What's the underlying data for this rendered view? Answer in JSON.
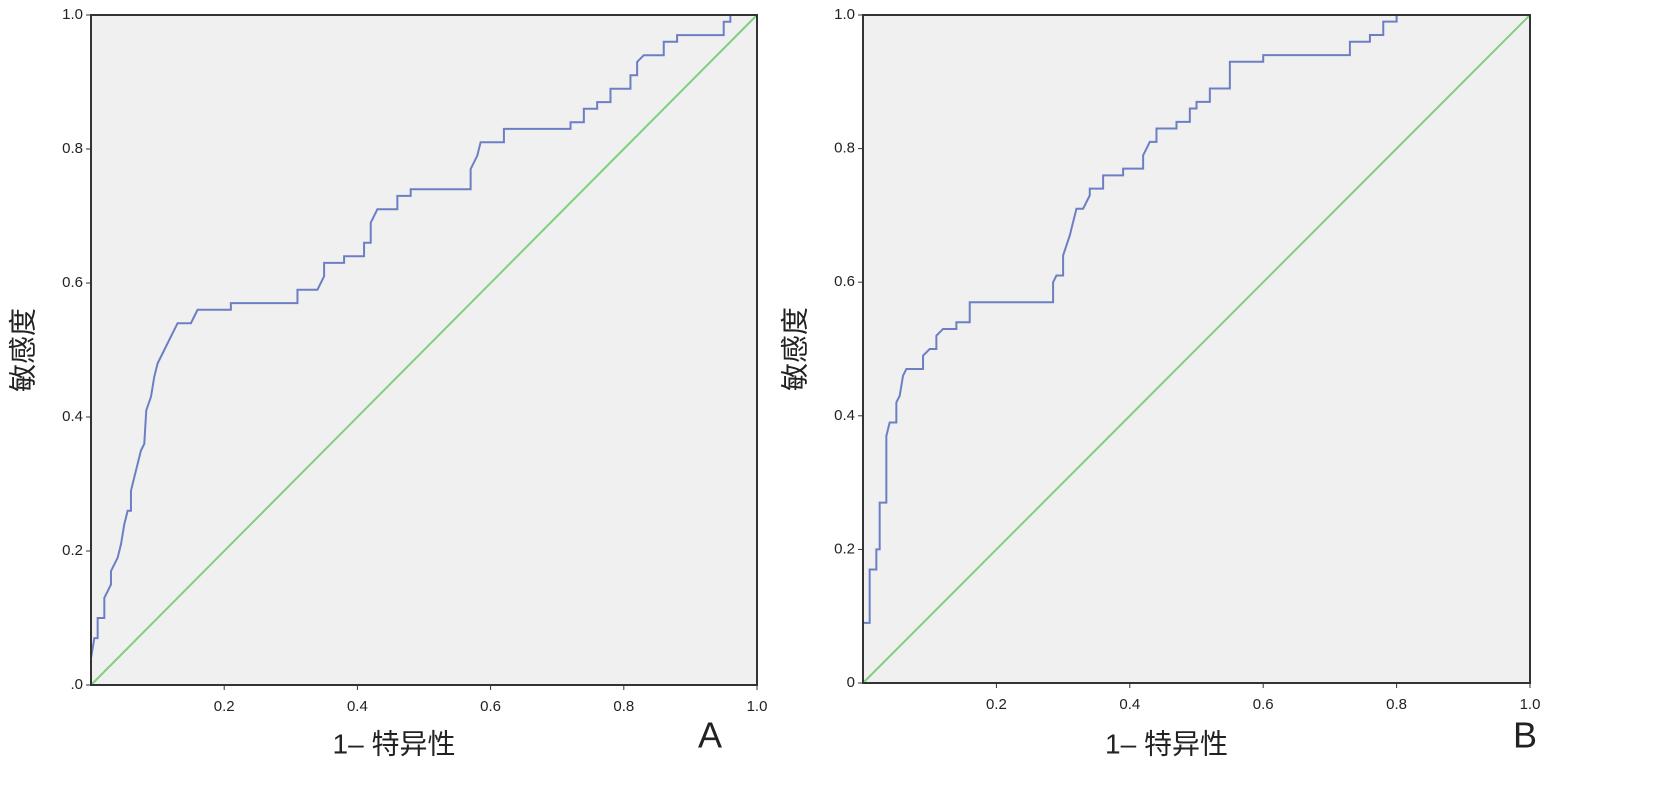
{
  "chart_data": [
    {
      "type": "line",
      "xlabel": "1– 特异性",
      "ylabel": "敏感度",
      "panel_label": "A",
      "xlim": [
        0,
        1
      ],
      "ylim": [
        0,
        1
      ],
      "xticks": [
        0.2,
        0.4,
        0.6,
        0.8,
        {
          "value": 1,
          "label": "1.0"
        }
      ],
      "yticks": [
        {
          "value": 0,
          "label": ".0"
        },
        0.2,
        0.4,
        0.6,
        0.8,
        {
          "value": 1,
          "label": "1.0"
        }
      ],
      "series": [
        {
          "color": "#6c7fc4",
          "x": [
            0,
            0,
            0.005,
            0.01,
            0.01,
            0.02,
            0.02,
            0.03,
            0.03,
            0.04,
            0.045,
            0.05,
            0.055,
            0.06,
            0.06,
            0.065,
            0.07,
            0.075,
            0.08,
            0.083,
            0.09,
            0.095,
            0.1,
            0.11,
            0.12,
            0.13,
            0.15,
            0.16,
            0.21,
            0.21,
            0.31,
            0.31,
            0.34,
            0.35,
            0.35,
            0.38,
            0.38,
            0.41,
            0.41,
            0.42,
            0.42,
            0.43,
            0.46,
            0.46,
            0.48,
            0.48,
            0.57,
            0.57,
            0.58,
            0.585,
            0.62,
            0.62,
            0.72,
            0.72,
            0.74,
            0.74,
            0.76,
            0.76,
            0.78,
            0.78,
            0.81,
            0.81,
            0.82,
            0.82,
            0.83,
            0.86,
            0.86,
            0.88,
            0.88,
            0.95,
            0.95,
            0.96,
            0.96,
            1
          ],
          "values": [
            0,
            0.04,
            0.07,
            0.07,
            0.1,
            0.1,
            0.13,
            0.15,
            0.17,
            0.19,
            0.21,
            0.24,
            0.26,
            0.26,
            0.29,
            0.31,
            0.33,
            0.35,
            0.36,
            0.41,
            0.43,
            0.46,
            0.48,
            0.5,
            0.52,
            0.54,
            0.54,
            0.56,
            0.56,
            0.57,
            0.57,
            0.59,
            0.59,
            0.61,
            0.63,
            0.63,
            0.64,
            0.64,
            0.66,
            0.66,
            0.69,
            0.71,
            0.71,
            0.73,
            0.73,
            0.74,
            0.74,
            0.77,
            0.79,
            0.81,
            0.81,
            0.83,
            0.83,
            0.84,
            0.84,
            0.86,
            0.86,
            0.87,
            0.87,
            0.89,
            0.89,
            0.91,
            0.91,
            0.93,
            0.94,
            0.94,
            0.96,
            0.96,
            0.97,
            0.97,
            0.99,
            0.99,
            1,
            1
          ]
        },
        {
          "color": "#7fcf7f",
          "x": [
            0,
            1
          ],
          "values": [
            0,
            1
          ]
        }
      ]
    },
    {
      "type": "line",
      "xlabel": "1– 特异性",
      "ylabel": "敏感度",
      "panel_label": "B",
      "xlim": [
        0,
        1
      ],
      "ylim": [
        0,
        1
      ],
      "xticks": [
        0.2,
        0.4,
        0.6,
        0.8,
        {
          "value": 1,
          "label": "1.0"
        }
      ],
      "yticks": [
        0,
        0.2,
        0.4,
        0.6,
        0.8,
        {
          "value": 1,
          "label": "1.0"
        }
      ],
      "series": [
        {
          "color": "#6c7fc4",
          "x": [
            0,
            0,
            0.01,
            0.01,
            0.02,
            0.02,
            0.025,
            0.025,
            0.035,
            0.035,
            0.04,
            0.05,
            0.05,
            0.055,
            0.06,
            0.065,
            0.09,
            0.09,
            0.1,
            0.11,
            0.11,
            0.12,
            0.14,
            0.14,
            0.16,
            0.16,
            0.285,
            0.285,
            0.29,
            0.3,
            0.3,
            0.31,
            0.315,
            0.32,
            0.33,
            0.34,
            0.34,
            0.36,
            0.36,
            0.39,
            0.39,
            0.42,
            0.42,
            0.43,
            0.44,
            0.44,
            0.47,
            0.47,
            0.49,
            0.49,
            0.5,
            0.5,
            0.52,
            0.52,
            0.55,
            0.55,
            0.6,
            0.6,
            0.73,
            0.73,
            0.76,
            0.76,
            0.78,
            0.78,
            0.8,
            0.8,
            1
          ],
          "values": [
            0,
            0.09,
            0.09,
            0.17,
            0.17,
            0.2,
            0.2,
            0.27,
            0.27,
            0.37,
            0.39,
            0.39,
            0.42,
            0.43,
            0.46,
            0.47,
            0.47,
            0.49,
            0.5,
            0.5,
            0.52,
            0.53,
            0.53,
            0.54,
            0.54,
            0.57,
            0.57,
            0.6,
            0.61,
            0.61,
            0.64,
            0.67,
            0.69,
            0.71,
            0.71,
            0.73,
            0.74,
            0.74,
            0.76,
            0.76,
            0.77,
            0.77,
            0.79,
            0.81,
            0.81,
            0.83,
            0.83,
            0.84,
            0.84,
            0.86,
            0.86,
            0.87,
            0.87,
            0.89,
            0.89,
            0.93,
            0.93,
            0.94,
            0.94,
            0.96,
            0.96,
            0.97,
            0.97,
            0.99,
            0.99,
            1,
            1
          ]
        },
        {
          "color": "#7fcf7f",
          "x": [
            0,
            1
          ],
          "values": [
            0,
            1
          ]
        }
      ]
    }
  ]
}
